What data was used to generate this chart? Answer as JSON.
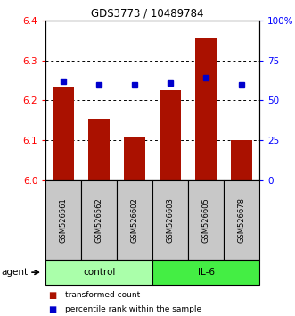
{
  "title": "GDS3773 / 10489784",
  "samples": [
    "GSM526561",
    "GSM526562",
    "GSM526602",
    "GSM526603",
    "GSM526605",
    "GSM526678"
  ],
  "red_values": [
    6.235,
    6.155,
    6.11,
    6.225,
    6.355,
    6.1
  ],
  "blue_values_pct": [
    62,
    60,
    60,
    61,
    64,
    60
  ],
  "y_min": 6.0,
  "y_max": 6.4,
  "y_ticks": [
    6.0,
    6.1,
    6.2,
    6.3,
    6.4
  ],
  "right_y_ticks": [
    0,
    25,
    50,
    75,
    100
  ],
  "right_y_labels": [
    "0",
    "25",
    "50",
    "75",
    "100%"
  ],
  "groups": [
    {
      "label": "control",
      "color": "#aaffaa"
    },
    {
      "label": "IL-6",
      "color": "#44ee44"
    }
  ],
  "bar_color": "#aa1100",
  "dot_color": "#0000cc",
  "bar_width": 0.6,
  "bg_sample": "#c8c8c8",
  "legend_red_label": "transformed count",
  "legend_blue_label": "percentile rank within the sample",
  "agent_label": "agent"
}
